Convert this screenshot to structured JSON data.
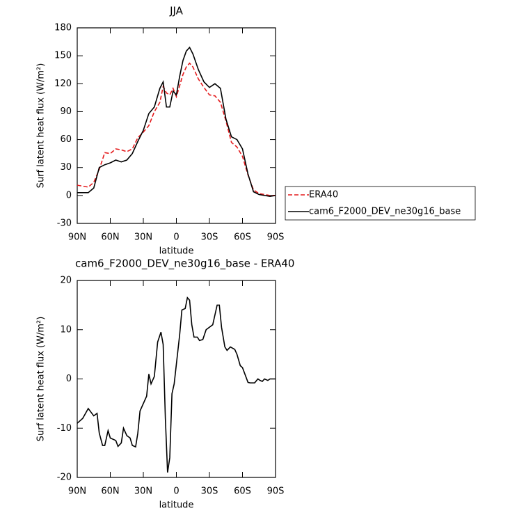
{
  "chart_data": [
    {
      "type": "line",
      "title": "JJA",
      "x_label": "latitude",
      "y_label": "Surf latent heat flux (W/m²)",
      "x": [
        90,
        85,
        80,
        75,
        70,
        65,
        60,
        55,
        50,
        45,
        40,
        35,
        30,
        25,
        20,
        15,
        12,
        9,
        6,
        3,
        0,
        -3,
        -6,
        -9,
        -12,
        -15,
        -20,
        -25,
        -30,
        -35,
        -40,
        -45,
        -50,
        -55,
        -60,
        -65,
        -70,
        -75,
        -80,
        -85,
        -90
      ],
      "series": [
        {
          "name": "ERA40",
          "color": "#e41a1c",
          "line_style": "dashed",
          "values": [
            11,
            10,
            9,
            14,
            28,
            46,
            45,
            50,
            49,
            47,
            50,
            62,
            68,
            75,
            90,
            100,
            117,
            110,
            108,
            115,
            106,
            118,
            130,
            138,
            142,
            138,
            125,
            116,
            108,
            107,
            100,
            80,
            57,
            52,
            42,
            22,
            6,
            2,
            1,
            0,
            0
          ]
        },
        {
          "name": "cam6_F2000_DEV_ne30g16_base",
          "color": "#000000",
          "line_style": "solid",
          "values": [
            3,
            3,
            3,
            8,
            30,
            33,
            35,
            38,
            36,
            38,
            45,
            58,
            70,
            88,
            95,
            115,
            122,
            95,
            95,
            112,
            108,
            128,
            145,
            155,
            159,
            152,
            135,
            122,
            116,
            120,
            115,
            82,
            63,
            60,
            50,
            23,
            4,
            1,
            0,
            -1,
            0
          ]
        }
      ],
      "xlim": [
        90,
        -90
      ],
      "xticks": [
        {
          "value": 90,
          "label": "90N"
        },
        {
          "value": 60,
          "label": "60N"
        },
        {
          "value": 30,
          "label": "30N"
        },
        0,
        {
          "value": -30,
          "label": "30S"
        },
        {
          "value": -60,
          "label": "60S"
        },
        {
          "value": -90,
          "label": "90S"
        }
      ],
      "ylim": [
        -30,
        180
      ],
      "yticks": [
        -30,
        0,
        30,
        60,
        90,
        120,
        150,
        180
      ],
      "legend": "right"
    },
    {
      "type": "line",
      "title": "cam6_F2000_DEV_ne30g16_base - ERA40",
      "x_label": "latitude",
      "y_label": "Surf latent heat flux (W/m²)",
      "x": [
        90,
        85,
        80,
        75,
        72,
        70,
        67,
        65,
        62,
        60,
        55,
        53,
        50,
        48,
        45,
        42,
        40,
        37,
        35,
        33,
        30,
        27,
        25,
        23,
        20,
        17,
        14,
        12,
        10,
        8,
        6,
        4,
        2,
        0,
        -3,
        -5,
        -8,
        -10,
        -12,
        -14,
        -16,
        -19,
        -21,
        -24,
        -27,
        -33,
        -37,
        -39,
        -41,
        -44,
        -46,
        -49,
        -53,
        -55,
        -58,
        -60,
        -63,
        -65,
        -67,
        -71,
        -74,
        -76,
        -78,
        -80,
        -83,
        -85,
        -90
      ],
      "values": [
        -9,
        -8,
        -6,
        -7.5,
        -7,
        -11,
        -13.5,
        -13.5,
        -10.5,
        -12,
        -12.5,
        -13.7,
        -13,
        -10,
        -11.5,
        -12,
        -13.5,
        -13.8,
        -11,
        -6.5,
        -5,
        -3.5,
        1,
        -1,
        0.5,
        7.5,
        9.5,
        7,
        -8,
        -19,
        -16,
        -3,
        -1,
        3,
        9,
        14,
        14.3,
        16.5,
        16,
        11,
        8.5,
        8.5,
        7.8,
        8,
        10,
        11,
        15,
        15,
        10.5,
        6.5,
        5.8,
        6.5,
        6,
        5,
        2.7,
        2.3,
        0.5,
        -0.7,
        -0.8,
        -0.8,
        0,
        -0.3,
        -0.5,
        0,
        -0.3,
        0,
        0
      ],
      "color": "#000000",
      "xlim": [
        90,
        -90
      ],
      "xticks": [
        {
          "value": 90,
          "label": "90N"
        },
        {
          "value": 60,
          "label": "60N"
        },
        {
          "value": 30,
          "label": "30N"
        },
        0,
        {
          "value": -30,
          "label": "30S"
        },
        {
          "value": -60,
          "label": "60S"
        },
        {
          "value": -90,
          "label": "90S"
        }
      ],
      "ylim": [
        -20,
        20
      ],
      "yticks": [
        -20,
        -10,
        0,
        10,
        20
      ]
    }
  ]
}
